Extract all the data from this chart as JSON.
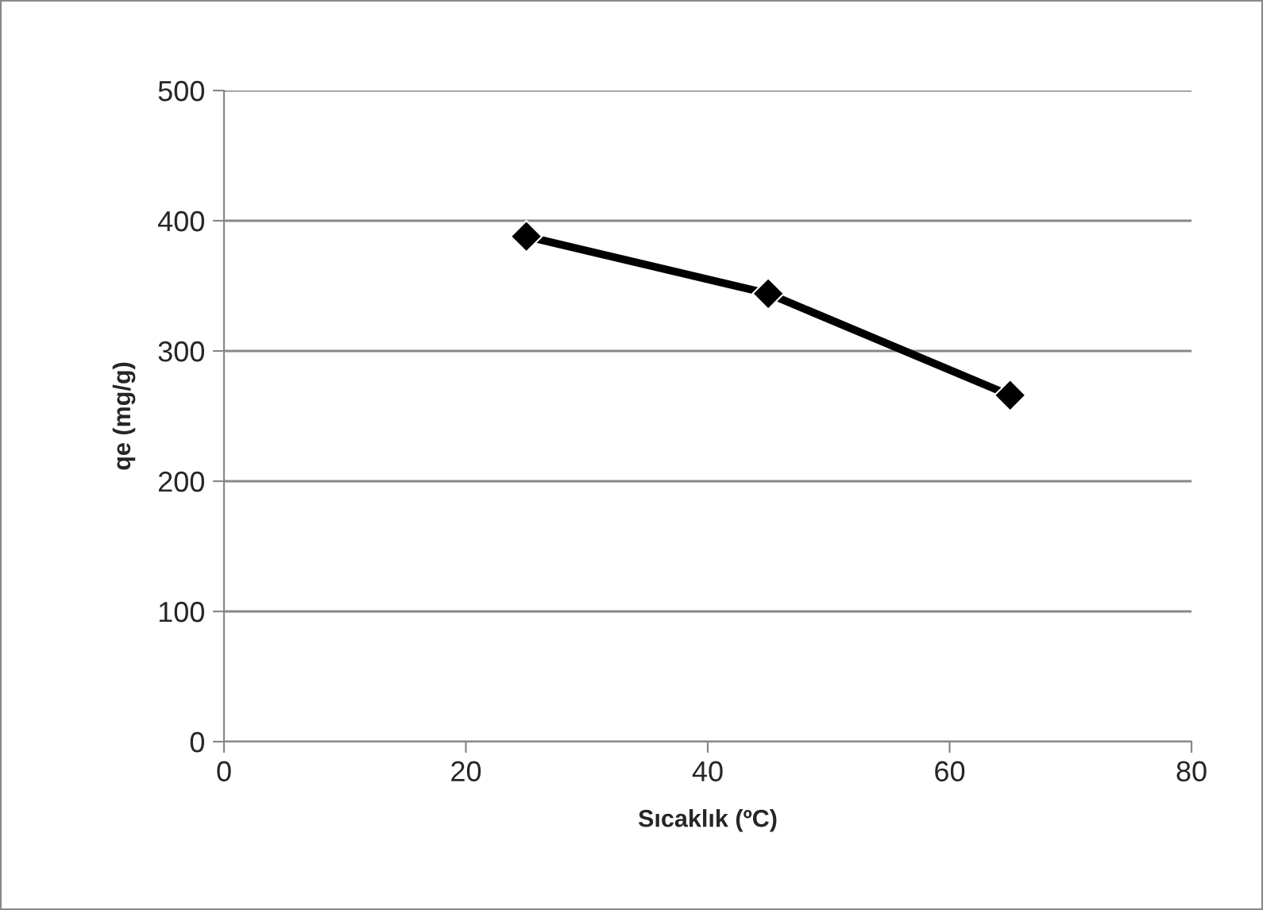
{
  "chart_data": {
    "type": "line",
    "xlabel": "Sıcaklık (ºC)",
    "ylabel": "qe (mg/g)",
    "x": [
      25,
      45,
      65
    ],
    "series": [
      {
        "color": "#000000",
        "values": [
          388,
          344,
          266
        ]
      }
    ],
    "xlim": [
      0,
      80
    ],
    "xticks": [
      0,
      20,
      40,
      60,
      80
    ],
    "ylim": [
      0,
      500
    ],
    "yticks": [
      0,
      100,
      200,
      300,
      400,
      500
    ],
    "grid": "y",
    "marker": "diamond",
    "line_style": "solid"
  }
}
